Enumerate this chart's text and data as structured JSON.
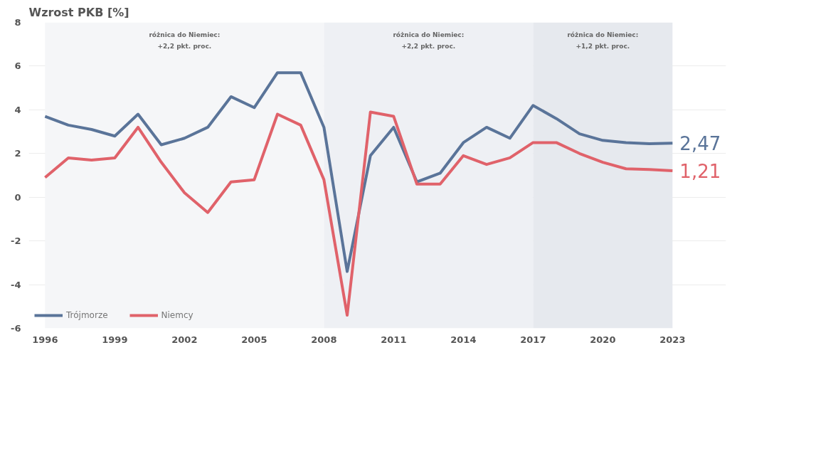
{
  "chart_data": {
    "type": "line",
    "title": "Wzrost PKB [%]",
    "x": [
      1996,
      1997,
      1998,
      1999,
      2000,
      2001,
      2002,
      2003,
      2004,
      2005,
      2006,
      2007,
      2008,
      2009,
      2010,
      2011,
      2012,
      2013,
      2014,
      2015,
      2016,
      2017,
      2018,
      2019,
      2020,
      2021,
      2022,
      2023
    ],
    "series": [
      {
        "name": "Trójmorze",
        "color": "#5a7499",
        "values": [
          3.7,
          3.3,
          3.1,
          2.8,
          3.8,
          2.4,
          2.7,
          3.2,
          4.6,
          4.1,
          5.7,
          5.7,
          3.2,
          -3.4,
          1.9,
          3.2,
          0.7,
          1.1,
          2.5,
          3.2,
          2.7,
          4.2,
          3.6,
          2.9,
          2.6,
          2.5,
          2.45,
          2.47
        ],
        "value_labels": [
          null,
          null,
          null,
          null,
          null,
          null,
          null,
          null,
          null,
          null,
          null,
          null,
          null,
          null,
          null,
          null,
          null,
          null,
          null,
          null,
          null,
          null,
          null,
          null,
          null,
          null,
          null,
          "2,47"
        ]
      },
      {
        "name": "Niemcy",
        "color": "#e0626a",
        "values": [
          0.9,
          1.8,
          1.7,
          1.8,
          3.2,
          1.6,
          0.2,
          -0.7,
          0.7,
          0.8,
          3.8,
          3.3,
          0.8,
          -5.4,
          3.9,
          3.7,
          0.6,
          0.6,
          1.9,
          1.5,
          1.8,
          2.5,
          2.5,
          2.0,
          1.6,
          1.3,
          1.27,
          1.21
        ],
        "value_labels": [
          null,
          null,
          null,
          null,
          null,
          null,
          null,
          null,
          null,
          null,
          null,
          null,
          null,
          null,
          null,
          null,
          null,
          null,
          null,
          null,
          null,
          null,
          null,
          null,
          null,
          null,
          null,
          "1,21"
        ]
      }
    ],
    "xlim": [
      1995.3,
      2025.3
    ],
    "xticks": [
      1996,
      1999,
      2002,
      2005,
      2008,
      2011,
      2014,
      2017,
      2020,
      2023
    ],
    "ylim": [
      -6,
      8
    ],
    "yticks": [
      -6,
      -4,
      -2,
      0,
      2,
      4,
      6,
      8
    ],
    "bands": [
      {
        "axis": "x",
        "from": 1996,
        "to": 2008,
        "label": "różnica do Niemiec:\n+2,2 pkt. proc.",
        "color": "#f5f6f8"
      },
      {
        "axis": "x",
        "from": 2008,
        "to": 2017,
        "label": "różnica do Niemiec:\n+2,2 pkt. proc.",
        "color": "#eef0f4"
      },
      {
        "axis": "x",
        "from": 2017,
        "to": 2023,
        "label": "różnica do Niemiec:\n+1,2 pkt. proc.",
        "color": "#e6e9ee"
      }
    ],
    "grid": "y",
    "legend": "bottom left",
    "marker": "none",
    "line_style": "solid"
  }
}
